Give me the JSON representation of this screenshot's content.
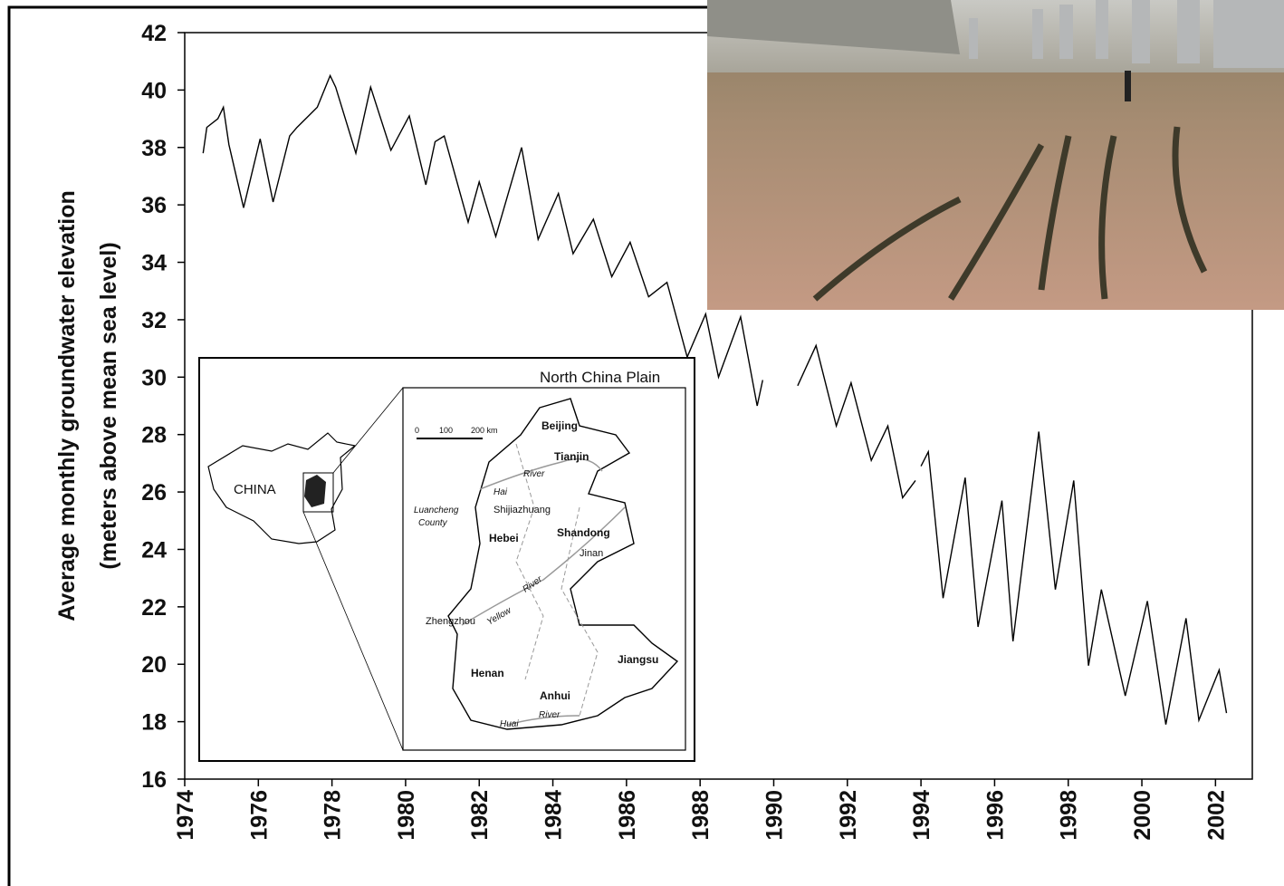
{
  "chart_data": {
    "type": "line",
    "y_label": [
      "Average monthly groundwater elevation",
      "(meters above mean sea level)"
    ],
    "x": [
      1974.5,
      1974.6,
      1974.9,
      1975.05,
      1975.2,
      1975.6,
      1976.05,
      1976.4,
      1976.85,
      1977.05,
      1977.6,
      1977.95,
      1978.1,
      1978.65,
      1979.05,
      1979.6,
      1980.1,
      1980.55,
      1980.8,
      1981.05,
      1981.7,
      1982.0,
      1982.45,
      1983.15,
      1983.6,
      1984.15,
      1984.55,
      1985.1,
      1985.6,
      1986.1,
      1986.6,
      1987.1,
      1987.65,
      1988.15,
      1988.5,
      1989.1,
      1989.55,
      1989.7,
      1990.2,
      1990.65,
      1991.15,
      1991.7,
      1992.1,
      1992.65,
      1993.1,
      1993.5,
      1993.85,
      1993.92,
      1994.0,
      1994.2,
      1994.6,
      1995.2,
      1995.55,
      1996.2,
      1996.5,
      1997.2,
      1997.65,
      1998.15,
      1998.55,
      1998.9,
      1999.55,
      2000.15,
      2000.65,
      2001.2,
      2001.55,
      2002.1,
      2002.3
    ],
    "series": [
      {
        "color": "#000000",
        "values": [
          37.8,
          38.7,
          39.0,
          39.4,
          38.1,
          35.9,
          38.3,
          36.1,
          38.4,
          38.7,
          39.4,
          40.5,
          40.1,
          37.8,
          40.1,
          37.9,
          39.1,
          36.7,
          38.2,
          38.4,
          35.4,
          36.8,
          34.9,
          38.0,
          34.8,
          36.4,
          34.3,
          35.5,
          33.5,
          34.7,
          32.8,
          33.3,
          30.7,
          32.2,
          30.0,
          32.1,
          29.0,
          29.9,
          null,
          29.7,
          31.1,
          28.3,
          29.8,
          27.1,
          28.3,
          25.8,
          26.4,
          null,
          26.9,
          27.4,
          22.3,
          26.5,
          21.3,
          25.7,
          20.8,
          28.1,
          22.6,
          26.4,
          19.95,
          22.6,
          18.9,
          22.2,
          17.9,
          21.6,
          18.05,
          19.8,
          18.3
        ]
      }
    ],
    "xlim": [
      1974,
      2003
    ],
    "ylim": [
      16,
      42
    ],
    "xticks": [
      1974,
      1976,
      1978,
      1980,
      1982,
      1984,
      1986,
      1988,
      1990,
      1992,
      1994,
      1996,
      1998,
      2000,
      2002
    ],
    "yticks": [
      16,
      18,
      20,
      22,
      24,
      26,
      28,
      30,
      32,
      34,
      36,
      38,
      40,
      42
    ]
  },
  "inset_map": {
    "title": "North China Plain",
    "country": "CHINA",
    "scale": [
      "0",
      "100",
      "200 km"
    ],
    "places": [
      "Beijing",
      "Tianjin",
      "Hebei",
      "Shandong",
      "Jinan",
      "Shijiazhuang",
      "Henan",
      "Anhui",
      "Jiangsu",
      "Zhengzhou"
    ],
    "county": [
      "Luancheng",
      "County"
    ],
    "rivers": [
      "Hai",
      "River",
      "Yellow",
      "River",
      "Huai",
      "River"
    ]
  }
}
